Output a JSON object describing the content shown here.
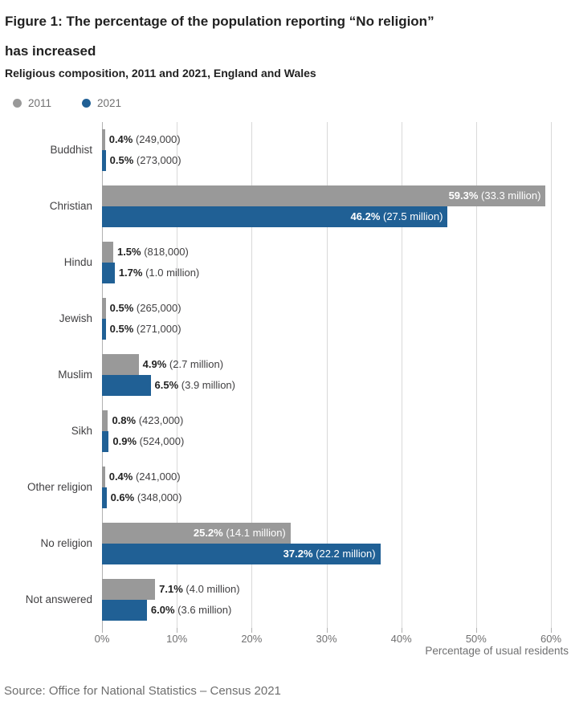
{
  "figure": {
    "title_lines": [
      "Figure 1: The percentage of the population reporting “No religion”",
      "has increased"
    ],
    "subtitle": "Religious composition, 2011 and 2021, England and Wales"
  },
  "chart_data": {
    "type": "bar",
    "orientation": "horizontal",
    "title": "Figure 1: The percentage of the population reporting “No religion” has increased",
    "subtitle": "Religious composition, 2011 and 2021, England and Wales",
    "xlabel": "Percentage of usual residents",
    "ylabel": "",
    "xlim": [
      0,
      60
    ],
    "x_ticks": [
      "0%",
      "10%",
      "20%",
      "30%",
      "40%",
      "50%",
      "60%"
    ],
    "x_tick_values": [
      0,
      10,
      20,
      30,
      40,
      50,
      60
    ],
    "grid": true,
    "legend_position": "top-left",
    "categories": [
      "Buddhist",
      "Christian",
      "Hindu",
      "Jewish",
      "Muslim",
      "Sikh",
      "Other religion",
      "No religion",
      "Not answered"
    ],
    "series": [
      {
        "name": "2011",
        "color": "#999999",
        "values": [
          0.4,
          59.3,
          1.5,
          0.5,
          4.9,
          0.8,
          0.4,
          25.2,
          7.1
        ],
        "pct_labels": [
          "0.4%",
          "59.3%",
          "1.5%",
          "0.5%",
          "4.9%",
          "0.8%",
          "0.4%",
          "25.2%",
          "7.1%"
        ],
        "count_labels": [
          "(249,000)",
          "(33.3 million)",
          "(818,000)",
          "(265,000)",
          "(2.7 million)",
          "(423,000)",
          "(241,000)",
          "(14.1 million)",
          "(4.0 million)"
        ],
        "inside": [
          false,
          true,
          false,
          false,
          false,
          false,
          false,
          true,
          false
        ]
      },
      {
        "name": "2021",
        "color": "#206095",
        "values": [
          0.5,
          46.2,
          1.7,
          0.5,
          6.5,
          0.9,
          0.6,
          37.2,
          6.0
        ],
        "pct_labels": [
          "0.5%",
          "46.2%",
          "1.7%",
          "0.5%",
          "6.5%",
          "0.9%",
          "0.6%",
          "37.2%",
          "6.0%"
        ],
        "count_labels": [
          "(273,000)",
          "(27.5 million)",
          "(1.0 million)",
          "(271,000)",
          "(3.9 million)",
          "(524,000)",
          "(348,000)",
          "(22.2 million)",
          "(3.6 million)"
        ],
        "inside": [
          false,
          true,
          false,
          false,
          false,
          false,
          false,
          true,
          false
        ]
      }
    ]
  },
  "source": "Source: Office for National Statistics – Census 2021"
}
